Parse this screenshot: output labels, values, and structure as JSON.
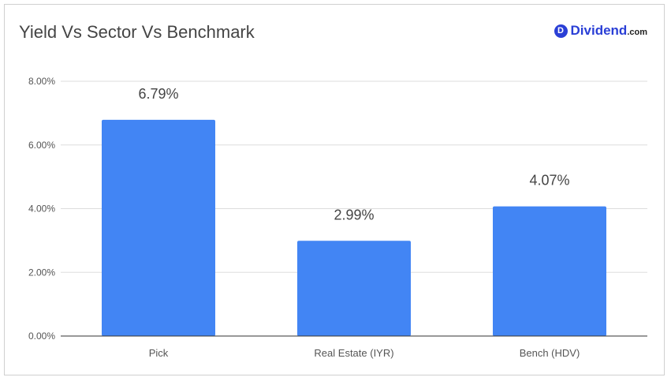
{
  "header": {
    "title": "Yield Vs Sector Vs Benchmark",
    "logo": {
      "badge": "D",
      "name": "Dividend",
      "tld": ".com",
      "color": "#2a3fd6"
    }
  },
  "chart_data": {
    "type": "bar",
    "title": "Yield Vs Sector Vs Benchmark",
    "categories": [
      "Pick",
      "Real Estate (IYR)",
      "Bench (HDV)"
    ],
    "values": [
      6.79,
      2.99,
      4.07
    ],
    "data_labels": [
      "6.79%",
      "2.99%",
      "4.07%"
    ],
    "y_ticks": [
      0,
      2,
      4,
      6,
      8
    ],
    "y_tick_labels": [
      "0.00%",
      "2.00%",
      "4.00%",
      "6.00%",
      "8.00%"
    ],
    "ylim": [
      0,
      8
    ],
    "xlabel": "",
    "ylabel": "",
    "grid": true,
    "bar_color": "#4285f4",
    "grid_color": "#dddddd",
    "axis_color": "#333333"
  }
}
